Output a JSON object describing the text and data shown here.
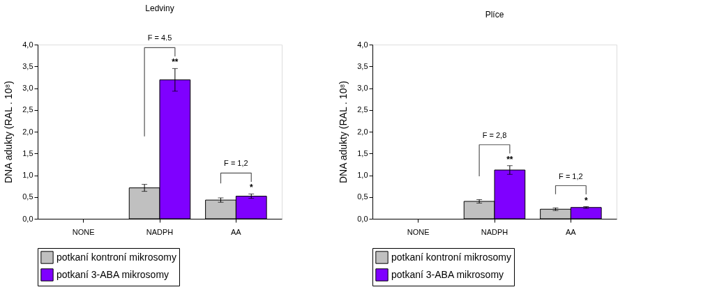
{
  "chart_data": [
    {
      "type": "bar",
      "title": "Ledviny",
      "ylabel": "DNA adukty (RAL . 10⁸)",
      "categories": [
        "NONE",
        "NADPH",
        "AA"
      ],
      "series": [
        {
          "name": "potkaní kontroní mikrosomy",
          "color": "#c0c0c0",
          "values": [
            null,
            0.71,
            0.43
          ],
          "errors": [
            null,
            0.08,
            0.05
          ]
        },
        {
          "name": "potkaní 3-ABA mikrosomy",
          "color": "#7f00ff",
          "values": [
            null,
            3.19,
            0.52
          ],
          "errors": [
            null,
            0.26,
            0.05
          ]
        }
      ],
      "ylim": [
        0,
        4
      ],
      "yticks": [
        {
          "value": 0,
          "label": "0,0"
        },
        {
          "value": 0.5,
          "label": "0,5"
        },
        {
          "value": 1,
          "label": "1,0"
        },
        {
          "value": 1.5,
          "label": "1,5"
        },
        {
          "value": 2,
          "label": "2,0"
        },
        {
          "value": 2.5,
          "label": "2,5"
        },
        {
          "value": 3,
          "label": "3,0"
        },
        {
          "value": 3.5,
          "label": "3,5"
        },
        {
          "value": 4,
          "label": "4,0"
        }
      ],
      "grid": false,
      "legend": "bottom",
      "annotations": [
        "F = 4.5",
        "**",
        "F = 1,2",
        "*"
      ]
    },
    {
      "type": "bar",
      "title": "Plíce",
      "ylabel": "DNA adukty (RAL . 10⁸)",
      "categories": [
        "NONE",
        "NADPH",
        "AA"
      ],
      "series": [
        {
          "name": "potkaní kontroní mikrosomy",
          "color": "#c0c0c0",
          "values": [
            null,
            0.4,
            0.22
          ],
          "errors": [
            null,
            0.04,
            0.03
          ]
        },
        {
          "name": "potkaní 3-ABA mikrosomy",
          "color": "#7f00ff",
          "values": [
            null,
            1.12,
            0.26
          ],
          "errors": [
            null,
            0.1,
            0.02
          ]
        }
      ],
      "ylim": [
        0,
        4
      ],
      "yticks": [
        {
          "value": 0,
          "label": "0,0"
        },
        {
          "value": 0.5,
          "label": "0,5"
        },
        {
          "value": 1,
          "label": "1,0"
        },
        {
          "value": 1.5,
          "label": "1,5"
        },
        {
          "value": 2,
          "label": "2,0"
        },
        {
          "value": 2.5,
          "label": "2,5"
        },
        {
          "value": 3,
          "label": "3,0"
        },
        {
          "value": 3.5,
          "label": "3,5"
        },
        {
          "value": 4,
          "label": "4,0"
        }
      ],
      "grid": false,
      "legend": "bottom",
      "annotations": [
        "F = 2,8",
        "**",
        "F = 1,2",
        "*"
      ]
    }
  ]
}
